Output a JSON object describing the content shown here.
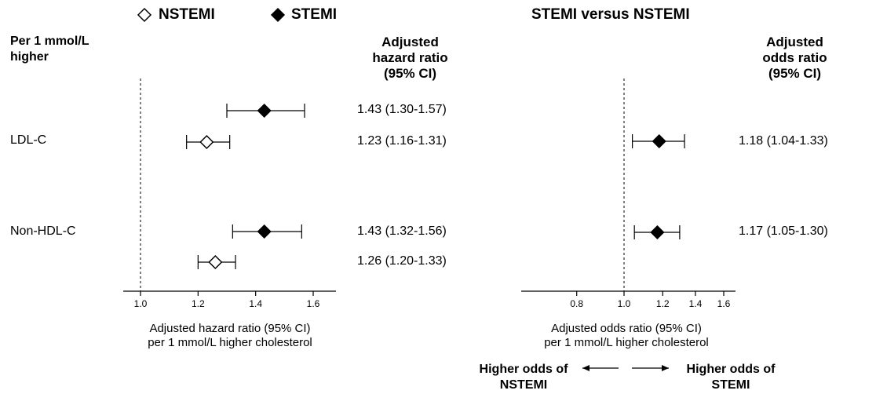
{
  "legend": {
    "nstemi_label": "NSTEMI",
    "stemi_label": "STEMI",
    "nstemi_marker": "open-diamond",
    "stemi_marker": "filled-diamond"
  },
  "left_panel": {
    "row_header": "Per 1 mmol/L\nhigher",
    "col_header": "Adjusted\nhazard ratio\n(95% CI)",
    "xlabel_line1": "Adjusted hazard ratio (95% CI)",
    "xlabel_line2": "per 1 mmol/L higher cholesterol"
  },
  "right_panel": {
    "title": "STEMI versus NSTEMI",
    "col_header": "Adjusted\nodds ratio\n(95% CI)",
    "xlabel_line1": "Adjusted odds ratio (95% CI)",
    "xlabel_line2": "per 1 mmol/L higher cholesterol",
    "left_direction": "Higher odds of\nNSTEMI",
    "right_direction": "Higher odds of\nSTEMI"
  },
  "rows": {
    "ldl": "LDL-C",
    "nonhdl": "Non-HDL-C"
  },
  "chart_data": [
    {
      "type": "forest",
      "xlabel": "Adjusted hazard ratio (95% CI) per 1 mmol/L higher cholesterol",
      "xticks": [
        "1.0",
        "1.2",
        "1.4",
        "1.6"
      ],
      "xlim": [
        0.95,
        1.7
      ],
      "reference_line": 1.0,
      "series": [
        {
          "name": "STEMI",
          "marker": "filled-diamond",
          "points": [
            {
              "group": "LDL-C",
              "estimate": 1.43,
              "lower": 1.3,
              "upper": 1.57,
              "label": "1.43 (1.30-1.57)"
            },
            {
              "group": "Non-HDL-C",
              "estimate": 1.43,
              "lower": 1.32,
              "upper": 1.56,
              "label": "1.43 (1.32-1.56)"
            }
          ]
        },
        {
          "name": "NSTEMI",
          "marker": "open-diamond",
          "points": [
            {
              "group": "LDL-C",
              "estimate": 1.23,
              "lower": 1.16,
              "upper": 1.31,
              "label": "1.23 (1.16-1.31)"
            },
            {
              "group": "Non-HDL-C",
              "estimate": 1.26,
              "lower": 1.2,
              "upper": 1.33,
              "label": "1.26 (1.20-1.33)"
            }
          ]
        }
      ]
    },
    {
      "type": "forest",
      "title": "STEMI versus NSTEMI",
      "xlabel": "Adjusted odds ratio (95% CI) per 1 mmol/L higher cholesterol",
      "xscale": "log",
      "xticks": [
        "0.8",
        "1.0",
        "1.2",
        "1.4",
        "1.6"
      ],
      "xlim": [
        0.6,
        1.7
      ],
      "reference_line": 1.0,
      "series": [
        {
          "name": "STEMI vs NSTEMI",
          "marker": "filled-diamond",
          "points": [
            {
              "group": "LDL-C",
              "estimate": 1.18,
              "lower": 1.04,
              "upper": 1.33,
              "label": "1.18 (1.04-1.33)"
            },
            {
              "group": "Non-HDL-C",
              "estimate": 1.17,
              "lower": 1.05,
              "upper": 1.3,
              "label": "1.17 (1.05-1.30)"
            }
          ]
        }
      ]
    }
  ]
}
